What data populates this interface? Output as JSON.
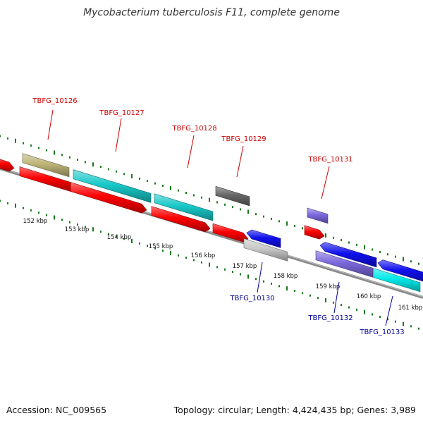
{
  "title": "Mycobacterium tuberculosis F11, complete genome",
  "footer": {
    "accession_label": "Accession:",
    "accession": "NC_009565",
    "topology_label": "Topology:",
    "topology": "circular",
    "length_label": "Length:",
    "length": "4,424,435 bp",
    "genes_label": "Genes:",
    "genes": "3,989"
  },
  "colors": {
    "label_forward": "#cc0000",
    "label_reverse": "#000099",
    "dots": "#1a7a1a",
    "backbone": "#888888",
    "feature_red": "#ff0000",
    "feature_cyan": "#19c9c9",
    "feature_khaki": "#bdb476",
    "feature_gray": "#666666",
    "feature_blue": "#1010ee",
    "feature_purple": "#7b68dd",
    "feature_lightgray": "#c8c8c8",
    "feature_brightcyan": "#00eaea"
  },
  "scale_labels": [
    "152 kbp",
    "153 kbp",
    "154 kbp",
    "155 kbp",
    "156 kbp",
    "157 kbp",
    "158 kbp",
    "159 kbp",
    "160 kbp",
    "161 kbp"
  ],
  "gene_labels": {
    "forward": [
      "TBFG_10126",
      "TBFG_10127",
      "TBFG_10128",
      "TBFG_10129",
      "TBFG_10131"
    ],
    "reverse": [
      "TBFG_10130",
      "TBFG_10132",
      "TBFG_10133"
    ]
  }
}
